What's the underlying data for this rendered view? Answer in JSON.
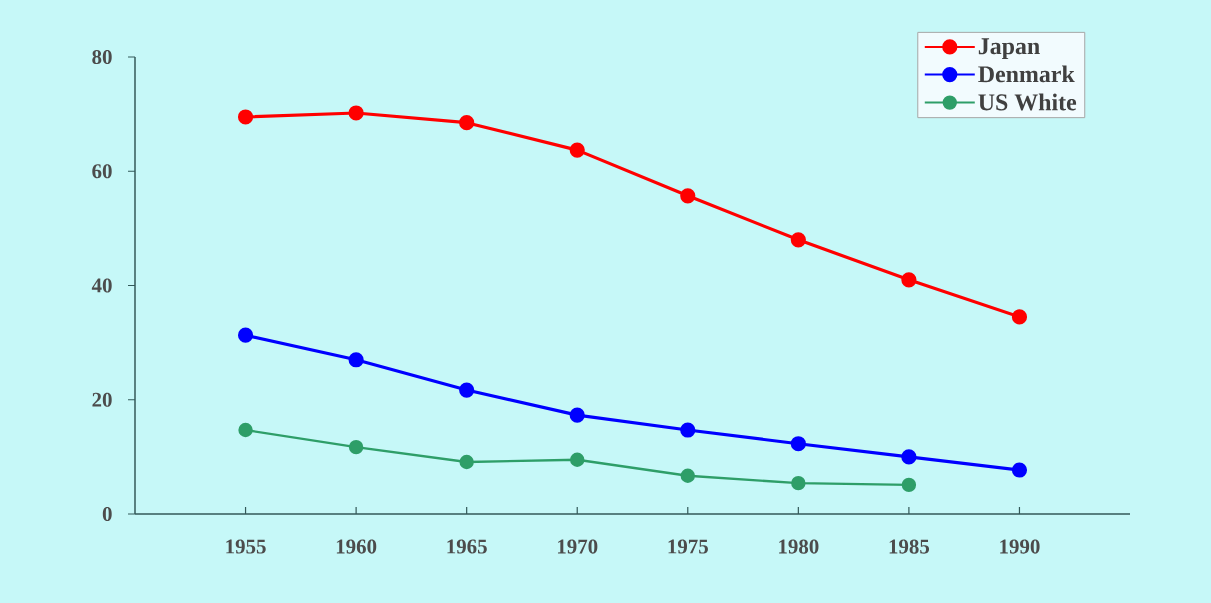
{
  "chart_data": {
    "type": "line",
    "x": [
      1955,
      1960,
      1965,
      1970,
      1975,
      1980,
      1985,
      1990
    ],
    "series": [
      {
        "name": "Japan",
        "color": "#ff0000",
        "values": [
          69.5,
          70.2,
          68.5,
          63.7,
          55.7,
          48,
          41,
          34.5
        ]
      },
      {
        "name": "Denmark",
        "color": "#0000ff",
        "values": [
          31.3,
          27,
          21.7,
          17.3,
          14.7,
          12.3,
          10,
          7.7
        ]
      },
      {
        "name": "US White",
        "color": "#2e9e68",
        "values": [
          14.7,
          11.7,
          9.1,
          9.5,
          6.7,
          5.4,
          5.1,
          null
        ]
      }
    ],
    "xlim": [
      1950,
      1995
    ],
    "ylim": [
      0,
      80
    ],
    "xticks": [
      1955,
      1960,
      1965,
      1970,
      1975,
      1980,
      1985,
      1990
    ],
    "yticks": [
      0,
      20,
      40,
      60,
      80
    ],
    "legend": "top right",
    "marker": "circle",
    "line_style": "solid"
  }
}
